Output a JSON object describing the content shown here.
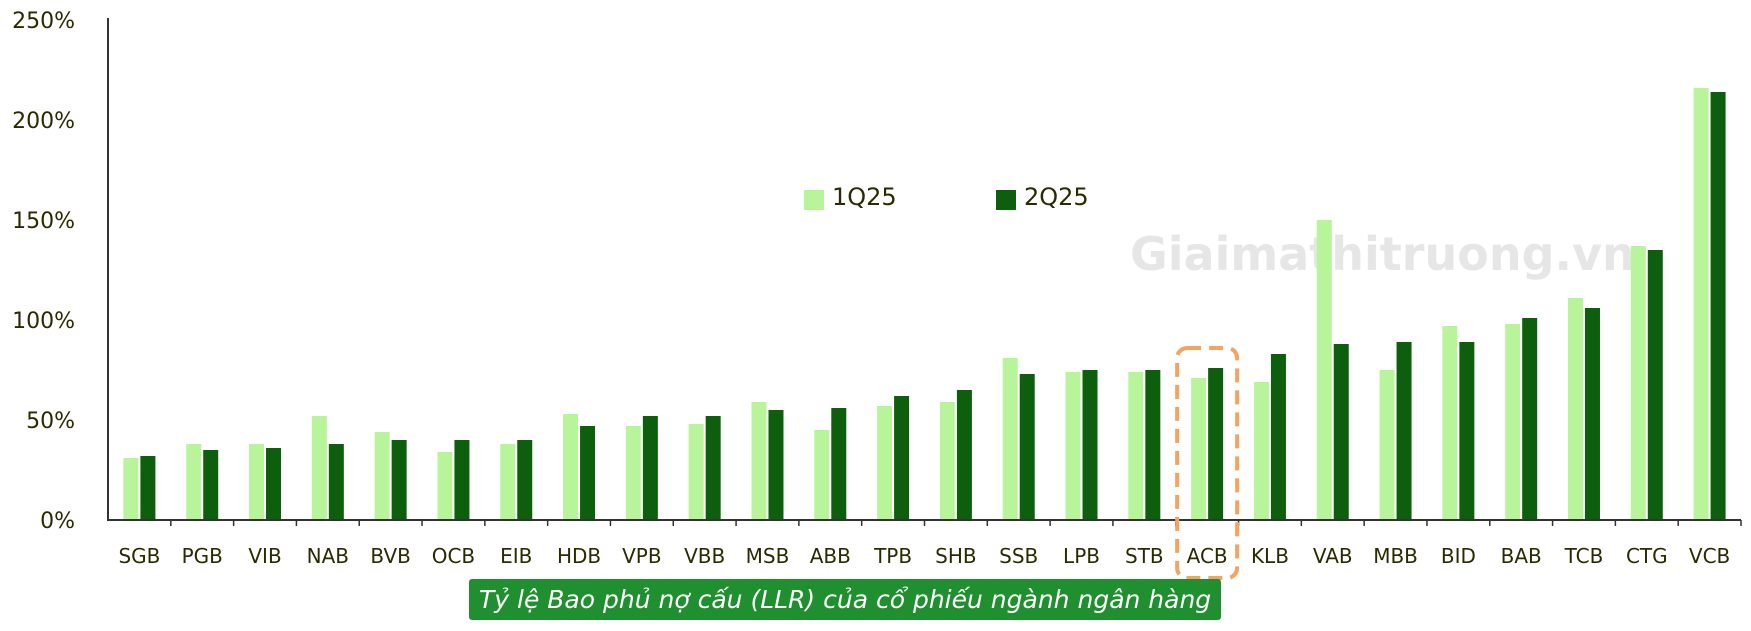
{
  "chart_data": {
    "type": "bar",
    "categories": [
      "SGB",
      "PGB",
      "VIB",
      "NAB",
      "BVB",
      "OCB",
      "EIB",
      "HDB",
      "VPB",
      "VBB",
      "MSB",
      "ABB",
      "TPB",
      "SHB",
      "SSB",
      "LPB",
      "STB",
      "ACB",
      "KLB",
      "VAB",
      "MBB",
      "BID",
      "BAB",
      "TCB",
      "CTG",
      "VCB"
    ],
    "series": [
      {
        "name": "1Q25",
        "color": "#b8f59a",
        "values": [
          31,
          38,
          38,
          52,
          44,
          34,
          38,
          53,
          47,
          48,
          59,
          45,
          57,
          59,
          81,
          74,
          74,
          71,
          69,
          150,
          75,
          97,
          98,
          111,
          137,
          216
        ]
      },
      {
        "name": "2Q25",
        "color": "#0d5e0d",
        "values": [
          32,
          35,
          36,
          38,
          40,
          40,
          40,
          47,
          52,
          52,
          55,
          56,
          62,
          65,
          73,
          75,
          75,
          76,
          83,
          88,
          89,
          89,
          101,
          106,
          135,
          214
        ]
      }
    ],
    "y_ticks": [
      "0%",
      "50%",
      "100%",
      "150%",
      "200%",
      "250%"
    ],
    "ylim": [
      0,
      250
    ],
    "legend_position": "top-center",
    "highlight_category": "ACB",
    "highlight_color": "#f4a460",
    "watermark": "Giaimathitruong.vn",
    "caption": "Tỷ lệ Bao phủ nợ cấu (LLR) của cổ phiếu ngành ngân hàng"
  }
}
